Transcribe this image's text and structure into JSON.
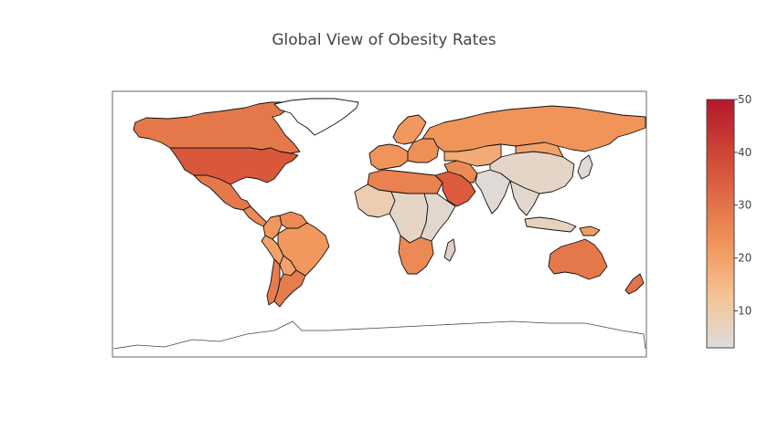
{
  "title": "Global View of Obesity Rates",
  "colorbar": {
    "ticks": [
      10,
      20,
      30,
      40,
      50
    ],
    "range": [
      3,
      50
    ],
    "colors": [
      "#dcdcdc",
      "#f5c596",
      "#f0955a",
      "#d9573b",
      "#b2182b"
    ]
  },
  "map": {
    "projection": "equirectangular",
    "background": "#ffffff",
    "land_outline": "#444444"
  },
  "regions": [
    {
      "name": "Canada",
      "value": 29
    },
    {
      "name": "United States",
      "value": 36
    },
    {
      "name": "Greenland",
      "value": null
    },
    {
      "name": "Mexico",
      "value": 29
    },
    {
      "name": "Central America",
      "value": 25
    },
    {
      "name": "Colombia",
      "value": 22
    },
    {
      "name": "Venezuela",
      "value": 25
    },
    {
      "name": "Peru",
      "value": 20
    },
    {
      "name": "Brazil",
      "value": 22
    },
    {
      "name": "Bolivia",
      "value": 20
    },
    {
      "name": "Argentina",
      "value": 28
    },
    {
      "name": "Chile",
      "value": 28
    },
    {
      "name": "Western Europe",
      "value": 23
    },
    {
      "name": "Eastern Europe",
      "value": 24
    },
    {
      "name": "Russia",
      "value": 23
    },
    {
      "name": "Scandinavia",
      "value": 22
    },
    {
      "name": "North Africa",
      "value": 27
    },
    {
      "name": "West Africa",
      "value": 9
    },
    {
      "name": "Central Africa",
      "value": 6
    },
    {
      "name": "East Africa",
      "value": 5
    },
    {
      "name": "Southern Africa",
      "value": 25
    },
    {
      "name": "Arabian Peninsula",
      "value": 35
    },
    {
      "name": "Iran",
      "value": 25
    },
    {
      "name": "Central Asia",
      "value": 18
    },
    {
      "name": "India",
      "value": 4
    },
    {
      "name": "China",
      "value": 6
    },
    {
      "name": "Mongolia",
      "value": 20
    },
    {
      "name": "Southeast Asia",
      "value": 5
    },
    {
      "name": "Japan",
      "value": 4
    },
    {
      "name": "Indonesia",
      "value": 7
    },
    {
      "name": "Australia",
      "value": 29
    },
    {
      "name": "New Zealand",
      "value": 30
    },
    {
      "name": "Papua New Guinea",
      "value": 21
    }
  ]
}
